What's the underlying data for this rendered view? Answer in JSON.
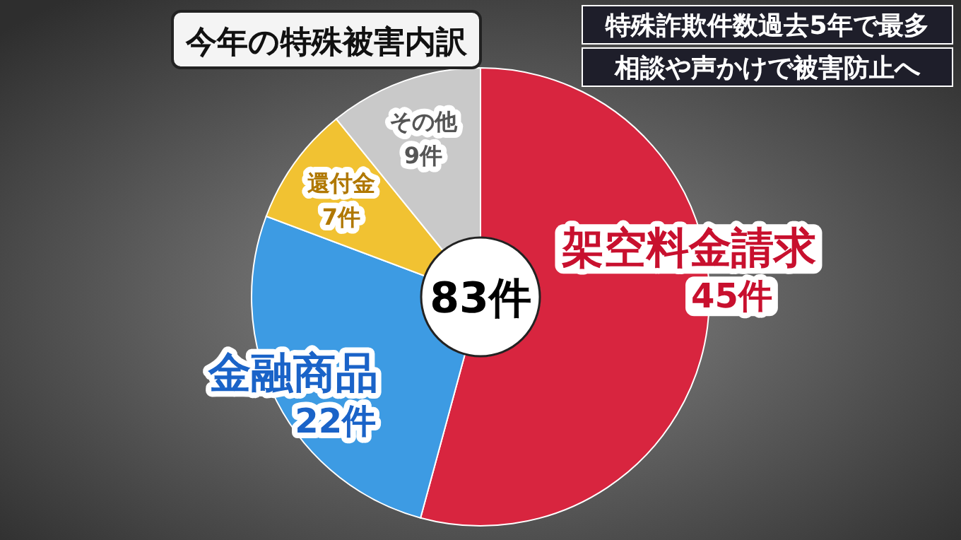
{
  "chart_data": {
    "type": "donut",
    "title": "今年の特殊被害内訳",
    "categories": [
      "架空料金請求",
      "金融商品",
      "還付金",
      "その他"
    ],
    "values": [
      45,
      22,
      7,
      9
    ],
    "colors": [
      "#d8253f",
      "#3d9be3",
      "#f1c232",
      "#c9c9c9"
    ],
    "value_labels": [
      "45件",
      "22件",
      "7件",
      "9件"
    ],
    "annotations": [
      "83件",
      "特殊詐欺件数過去5年で最多",
      "相談や声かけで被害防止へ"
    ]
  }
}
